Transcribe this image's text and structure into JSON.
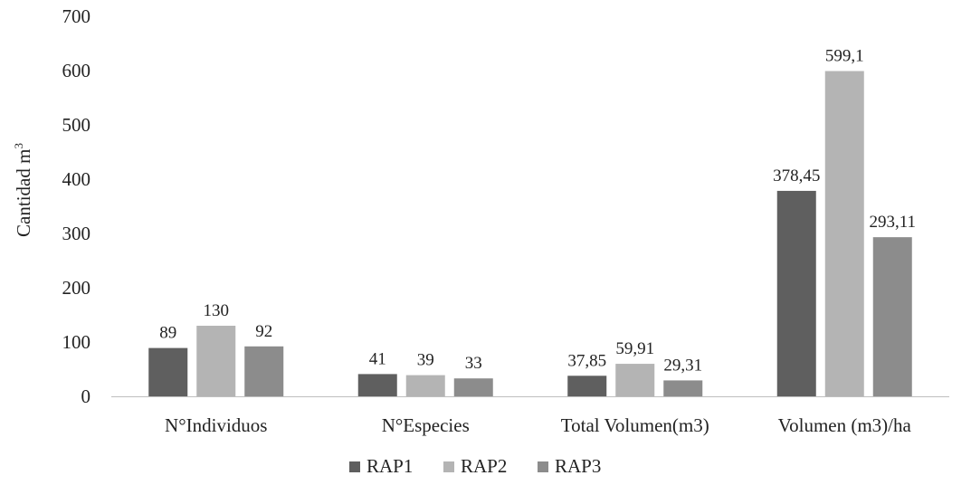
{
  "chart_data": {
    "type": "bar",
    "title": "",
    "xlabel": "",
    "ylabel": "Cantidad m",
    "ylabel_superscript": "3",
    "ylim": [
      0,
      700
    ],
    "yticks": [
      0,
      100,
      200,
      300,
      400,
      500,
      600,
      700
    ],
    "grid": false,
    "legend_position": "bottom",
    "categories": [
      "N°Individuos",
      "N°Especies",
      "Total Volumen(m3)",
      "Volumen (m3)/ha"
    ],
    "series": [
      {
        "name": "RAP1",
        "color": "#5f5f5f",
        "values": [
          89,
          41,
          37.85,
          378.45
        ],
        "labels": [
          "89",
          "41",
          "37,85",
          "378,45"
        ]
      },
      {
        "name": "RAP2",
        "color": "#b4b4b4",
        "values": [
          130,
          39,
          59.91,
          599.1
        ],
        "labels": [
          "130",
          "39",
          "59,91",
          "599,1"
        ]
      },
      {
        "name": "RAP3",
        "color": "#8c8c8c",
        "values": [
          92,
          33,
          29.31,
          293.11
        ],
        "labels": [
          "92",
          "33",
          "29,31",
          "293,11"
        ]
      }
    ]
  }
}
